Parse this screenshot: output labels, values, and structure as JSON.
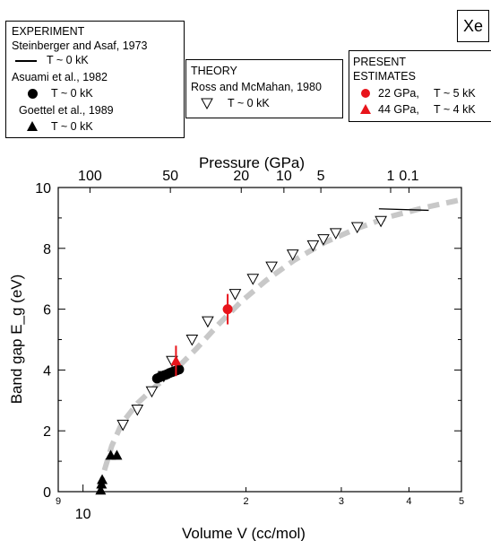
{
  "element_tag": "Xe",
  "legend": {
    "experiment": {
      "heading": "EXPERIMENT",
      "entries": [
        {
          "source": "Steinberger and Asaf, 1973",
          "condition": "T ~ 0 kK",
          "marker": "line"
        },
        {
          "source": "Asuami et al., 1982",
          "condition": "T ~ 0 kK",
          "marker": "filled-circle"
        },
        {
          "source": "Goettel et al., 1989",
          "condition": "T ~ 0 kK",
          "marker": "filled-triangle"
        }
      ]
    },
    "theory": {
      "heading": "THEORY",
      "entries": [
        {
          "source": "Ross and McMahan, 1980",
          "condition": "T ~ 0 kK",
          "marker": "open-triangle-down"
        }
      ]
    },
    "present": {
      "heading_line1": "PRESENT",
      "heading_line2": "ESTIMATES",
      "entries": [
        {
          "pressure": "22 GPa,",
          "condition": "T ~ 5 kK",
          "marker": "red-circle"
        },
        {
          "pressure": "44 GPa,",
          "condition": "T ~ 4 kK",
          "marker": "red-triangle"
        }
      ]
    }
  },
  "chart_data": {
    "type": "scatter",
    "x_scale": "log",
    "xlabel": "Volume V (cc/mol)",
    "ylabel": "Band gap E_g (eV)",
    "top_axis_label": "Pressure (GPa)",
    "xlim": [
      9,
      50
    ],
    "ylim": [
      0,
      10
    ],
    "y_ticks": [
      0,
      2,
      4,
      6,
      8,
      10
    ],
    "x_ticks_minor_labels": [
      {
        "label": "9",
        "value": 9
      },
      {
        "label": "2",
        "value": 20
      },
      {
        "label": "3",
        "value": 30
      },
      {
        "label": "4",
        "value": 40
      },
      {
        "label": "5",
        "value": 50
      }
    ],
    "x_tick_major_label": {
      "label": "10",
      "value": 10
    },
    "top_axis_ticks": [
      {
        "label": "100",
        "volume": 10.3
      },
      {
        "label": "50",
        "volume": 14.5
      },
      {
        "label": "20",
        "volume": 19.6
      },
      {
        "label": "10",
        "volume": 23.5
      },
      {
        "label": "5",
        "volume": 27.5
      },
      {
        "label": "1",
        "volume": 37.0
      },
      {
        "label": "0.1",
        "volume": 40.0
      }
    ],
    "series": [
      {
        "name": "Ross and McMahan, 1980",
        "marker": "open-triangle-down",
        "x": [
          11.85,
          12.6,
          13.4,
          14.1,
          14.6,
          15.9,
          17.0,
          19.1,
          20.6,
          22.3,
          24.4,
          26.6,
          27.8,
          29.3,
          32.1,
          35.5
        ],
        "y": [
          2.2,
          2.7,
          3.3,
          3.8,
          4.3,
          5.0,
          5.6,
          6.5,
          7.0,
          7.4,
          7.8,
          8.1,
          8.3,
          8.5,
          8.7,
          8.9
        ]
      },
      {
        "name": "Steinberger and Asaf, 1973",
        "marker": "line",
        "x": [
          35.2,
          43.5
        ],
        "y": [
          9.3,
          9.25
        ]
      },
      {
        "name": "Asuami et al., 1982",
        "marker": "filled-circle",
        "x": [
          13.7,
          13.85,
          14.0,
          14.15,
          14.3,
          14.45,
          14.6,
          14.75,
          14.9,
          15.05
        ],
        "y": [
          3.72,
          3.76,
          3.8,
          3.83,
          3.86,
          3.9,
          3.93,
          3.96,
          3.99,
          4.02
        ]
      },
      {
        "name": "Goettel et al., 1989",
        "marker": "filled-triangle",
        "x": [
          10.78,
          10.82,
          10.85,
          11.25,
          11.55
        ],
        "y": [
          0.05,
          0.25,
          0.4,
          1.2,
          1.2
        ]
      },
      {
        "name": "22 GPa, T ~ 5 kK",
        "marker": "red-circle",
        "x": [
          18.5
        ],
        "y": [
          6.0
        ],
        "yerr": [
          0.5
        ]
      },
      {
        "name": "44 GPa, T ~ 4 kK",
        "marker": "red-triangle",
        "x": [
          14.85
        ],
        "y": [
          4.3
        ],
        "yerr": [
          0.5
        ]
      }
    ],
    "trend_curve": {
      "style": "gray dashed",
      "x": [
        10.75,
        10.95,
        11.3,
        11.8,
        12.6,
        13.6,
        14.8,
        16.2,
        17.8,
        19.6,
        21.8,
        24.5,
        28.0,
        32.0,
        37.0,
        43.0,
        50.0
      ],
      "y": [
        0.1,
        0.7,
        1.5,
        2.25,
        2.9,
        3.45,
        4.0,
        4.7,
        5.5,
        6.25,
        6.95,
        7.6,
        8.2,
        8.65,
        9.05,
        9.35,
        9.6
      ]
    }
  }
}
